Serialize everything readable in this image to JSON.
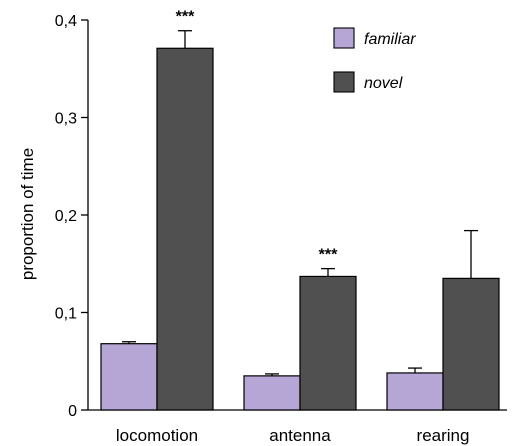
{
  "chart_data": {
    "type": "bar",
    "categories": [
      "locomotion",
      "antenna",
      "rearing"
    ],
    "series": [
      {
        "name": "familiar",
        "color": "#b5a6d6",
        "values": [
          0.068,
          0.035,
          0.038
        ],
        "errors": [
          0.002,
          0.002,
          0.005
        ]
      },
      {
        "name": "novel",
        "color": "#505050",
        "values": [
          0.371,
          0.137,
          0.135
        ],
        "errors": [
          0.018,
          0.008,
          0.049
        ]
      }
    ],
    "ylabel": "proportion of time",
    "xlabel": "",
    "ylim": [
      0,
      0.4
    ],
    "yticks": [
      0,
      0.1,
      0.2,
      0.3,
      0.4
    ],
    "ytick_labels": [
      "0",
      "0,1",
      "0,2",
      "0,3",
      "0,4"
    ],
    "annotations": [
      {
        "category": "locomotion",
        "series": "novel",
        "text": "***"
      },
      {
        "category": "antenna",
        "series": "novel",
        "text": "***"
      }
    ],
    "grid": false,
    "legend_position": "top-right"
  }
}
